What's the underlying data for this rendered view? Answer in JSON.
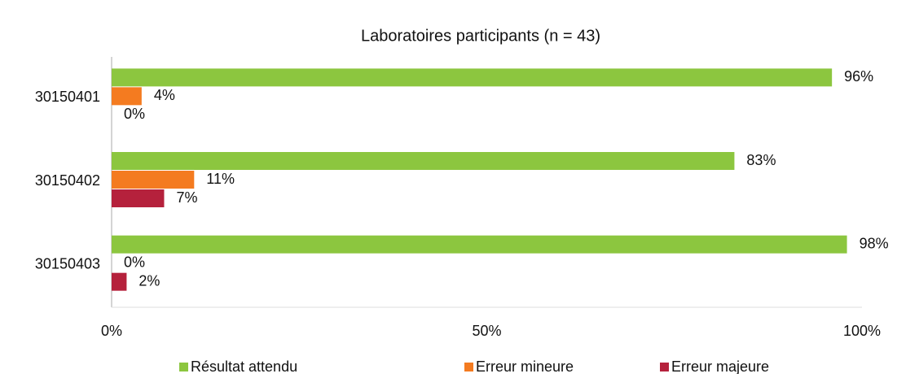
{
  "chart_data": {
    "type": "hbar",
    "title": "Laboratoires participants (n = 43)",
    "categories": [
      "30150401",
      "30150402",
      "30150403"
    ],
    "series": [
      {
        "name": "Résultat attendu",
        "color": "#8cc63f",
        "values": [
          96,
          83,
          98
        ],
        "value_labels": [
          "96%",
          "83%",
          "98%"
        ]
      },
      {
        "name": "Erreur mineure",
        "color": "#f47b20",
        "values": [
          4,
          11,
          0
        ],
        "value_labels": [
          "4%",
          "11%",
          "0%"
        ]
      },
      {
        "name": "Erreur majeure",
        "color": "#b5213c",
        "values": [
          0,
          7,
          2
        ],
        "value_labels": [
          "0%",
          "7%",
          "2%"
        ]
      }
    ],
    "xlim": [
      0,
      100
    ],
    "xticks": [
      {
        "value": 0,
        "label": "0%"
      },
      {
        "value": 50,
        "label": "50%"
      },
      {
        "value": 100,
        "label": "100%"
      }
    ],
    "grid": false,
    "legend": "bottom"
  }
}
